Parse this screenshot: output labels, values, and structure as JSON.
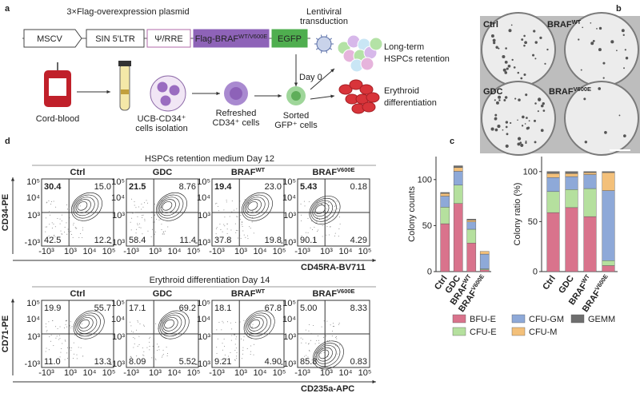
{
  "panel_a": {
    "label": "a",
    "plasmid_title": "3×Flag-overexpression plasmid",
    "plasmid": [
      {
        "text": "MSCV"
      },
      {
        "text": "SIN 5'LTR"
      },
      {
        "text": "Ψ/RRE"
      },
      {
        "text": "Flag-BRAF",
        "sup": "WT/V600E"
      },
      {
        "text": "EGFP"
      }
    ],
    "lentiviral": [
      "Lentiviral",
      "transduction"
    ],
    "day": "Day 0",
    "cord_blood": "Cord-blood",
    "isolation": [
      "UCB-CD34⁺",
      "cells isolation"
    ],
    "refreshed": [
      "Refreshed",
      "CD34⁺ cells"
    ],
    "sorted": [
      "Sorted",
      "GFP⁺ cells"
    ],
    "outcomes": [
      [
        "Long-term",
        "HSPCs retention"
      ],
      [
        "Erythroid",
        "differentiation"
      ]
    ]
  },
  "panel_b": {
    "label": "b",
    "wells": [
      {
        "name": "Ctrl"
      },
      {
        "name": "BRAF",
        "sup": "WT"
      },
      {
        "name": "GDC"
      },
      {
        "name": "BRAF",
        "sup": "V600E"
      }
    ]
  },
  "panel_d": {
    "label": "d",
    "samples": [
      {
        "name": "Ctrl",
        "color": "#3b5a9a"
      },
      {
        "name": "GDC",
        "color": "#c0272d"
      },
      {
        "name": "BRAF",
        "sup": "WT",
        "color": "#7cba3b"
      },
      {
        "name": "BRAF",
        "sup": "V600E",
        "color": "#e8a23a"
      }
    ],
    "x_ticks": [
      "-10³",
      "10³",
      "10⁴",
      "10⁵"
    ],
    "y_ticks": [
      "10⁵",
      "10⁴",
      "10³",
      "-10³"
    ],
    "rows": [
      {
        "title": "HSPCs retention medium Day 12",
        "y_label": "CD34-PE",
        "x_label": "CD45RA-BV711",
        "quadrants": [
          [
            "30.4",
            "15.0",
            "42.5",
            "12.2"
          ],
          [
            "21.5",
            "8.76",
            "58.4",
            "11.4"
          ],
          [
            "19.4",
            "23.0",
            "37.8",
            "19.8"
          ],
          [
            "5.43",
            "0.18",
            "90.1",
            "4.29"
          ]
        ]
      },
      {
        "title": "Erythroid differentiation Day 14",
        "y_label": "CD71-PE",
        "x_label": "CD235a-APC",
        "quadrants": [
          [
            "19.9",
            "55.7",
            "11.0",
            "13.3"
          ],
          [
            "17.1",
            "69.2",
            "8.09",
            "5.52"
          ],
          [
            "18.1",
            "67.8",
            "9.21",
            "4.90"
          ],
          [
            "5.00",
            "8.33",
            "85.8",
            "0.83"
          ]
        ]
      }
    ]
  },
  "panel_c": {
    "label": "c"
  },
  "chart_data": [
    {
      "type": "bar",
      "stacked": true,
      "y_label": "Colony counts",
      "categories": [
        "Ctrl",
        "GDC",
        "BRAF",
        "BRAF"
      ],
      "category_sups": [
        null,
        null,
        "WT",
        "V600E"
      ],
      "ylim": [
        0,
        125
      ],
      "yticks": [
        0,
        50,
        100
      ],
      "series": [
        {
          "name": "BFU-E",
          "color": "#d9738c",
          "values": [
            52,
            74,
            31,
            2
          ]
        },
        {
          "name": "CFU-E",
          "color": "#b5e09e",
          "values": [
            18,
            20,
            15,
            1
          ]
        },
        {
          "name": "CFU-GM",
          "color": "#8ea9d8",
          "values": [
            12,
            15,
            8,
            16
          ]
        },
        {
          "name": "CFU-M",
          "color": "#f3c07a",
          "values": [
            3,
            4,
            2,
            3
          ]
        },
        {
          "name": "GEMM",
          "color": "#6e6e6e",
          "values": [
            1,
            2,
            1,
            0
          ]
        }
      ]
    },
    {
      "type": "bar",
      "stacked": true,
      "y_label": "Colony ratio (%)",
      "categories": [
        "Ctrl",
        "GDC",
        "BRAF",
        "BRAF"
      ],
      "category_sups": [
        null,
        null,
        "WT",
        "V600E"
      ],
      "ylim": [
        0,
        115
      ],
      "yticks": [
        0,
        50,
        100
      ],
      "series": [
        {
          "name": "BFU-E",
          "color": "#d9738c",
          "values": [
            59,
            64,
            55,
            6
          ]
        },
        {
          "name": "CFU-E",
          "color": "#b5e09e",
          "values": [
            21,
            18,
            28,
            5
          ]
        },
        {
          "name": "CFU-GM",
          "color": "#8ea9d8",
          "values": [
            14,
            13,
            14,
            70
          ]
        },
        {
          "name": "CFU-M",
          "color": "#f3c07a",
          "values": [
            4,
            3,
            2,
            18
          ]
        },
        {
          "name": "GEMM",
          "color": "#6e6e6e",
          "values": [
            2,
            2,
            1,
            1
          ]
        }
      ]
    }
  ]
}
